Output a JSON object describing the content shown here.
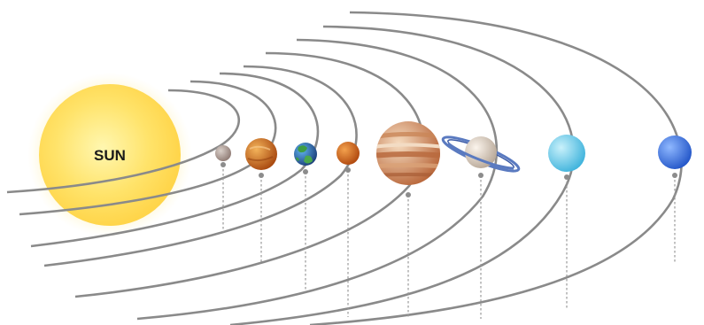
{
  "diagram": {
    "sun": {
      "label": "SUN",
      "colors": {
        "core": "#fff7b0",
        "mid": "#ffd54a",
        "glow": "#ffe680"
      }
    },
    "planets": [
      {
        "name": "mercury-icon",
        "colors": [
          "#d9cfc9",
          "#8f7b74"
        ]
      },
      {
        "name": "venus-icon",
        "colors": [
          "#f3b35a",
          "#a8480f"
        ]
      },
      {
        "name": "earth-icon",
        "colors": [
          "#3b8fd6",
          "#1c3f7a"
        ]
      },
      {
        "name": "mars-icon",
        "colors": [
          "#f3a14d",
          "#b0480e"
        ]
      },
      {
        "name": "jupiter-icon",
        "colors": [
          "#f6dcc0",
          "#b9683c"
        ]
      },
      {
        "name": "saturn-icon",
        "colors": [
          "#f6ece2",
          "#b8a898"
        ]
      },
      {
        "name": "uranus-icon",
        "colors": [
          "#c9f1fb",
          "#3fb3dc"
        ]
      },
      {
        "name": "neptune-icon",
        "colors": [
          "#8fb8ff",
          "#2356c8"
        ]
      }
    ]
  }
}
